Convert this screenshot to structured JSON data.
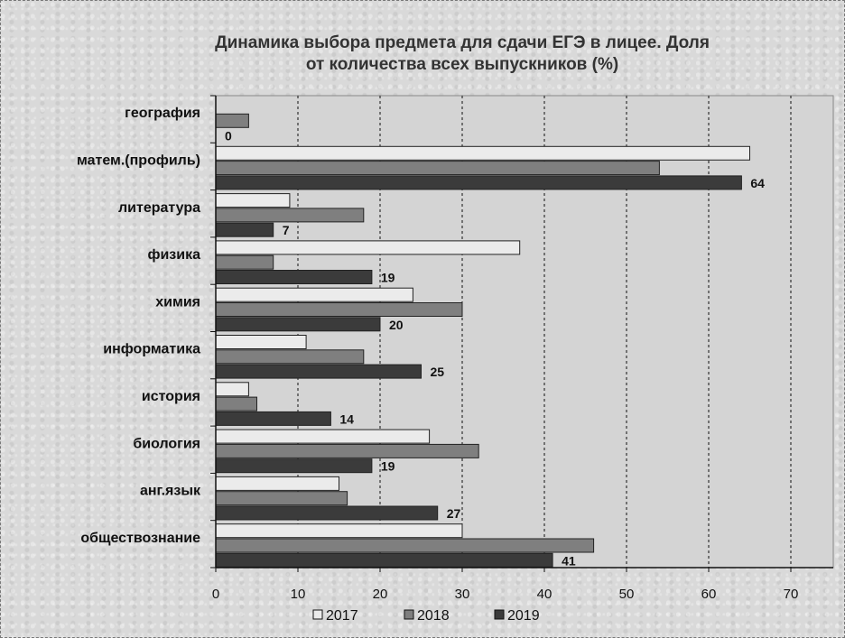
{
  "chart_data": {
    "type": "bar",
    "orientation": "horizontal",
    "title_lines": [
      "Динамика выбора  предмета для сдачи ЕГЭ в лицее.  Доля",
      "от количества всех выпускников (%)"
    ],
    "categories": [
      "география",
      "матем.(профиль)",
      "литература",
      "физика",
      "химия",
      "информатика",
      "история",
      "биология",
      "анг.язык",
      "обществознание"
    ],
    "series": [
      {
        "name": "2017",
        "color": "#ebebeb",
        "values": [
          null,
          65,
          9,
          37,
          24,
          11,
          4,
          26,
          15,
          30
        ]
      },
      {
        "name": "2018",
        "color": "#7f7f7f",
        "values": [
          4,
          54,
          18,
          7,
          30,
          18,
          5,
          32,
          16,
          46
        ]
      },
      {
        "name": "2019",
        "color": "#3b3b3b",
        "values": [
          0,
          64,
          7,
          19,
          20,
          25,
          14,
          19,
          27,
          41
        ]
      }
    ],
    "data_labels_series": "2019",
    "xlim": [
      0,
      70
    ],
    "xticks": [
      0,
      10,
      20,
      30,
      40,
      50,
      60,
      70
    ],
    "grid": "vertical dashed",
    "legend": {
      "position": "bottom",
      "entries": [
        "2017",
        "2018",
        "2019"
      ]
    }
  }
}
